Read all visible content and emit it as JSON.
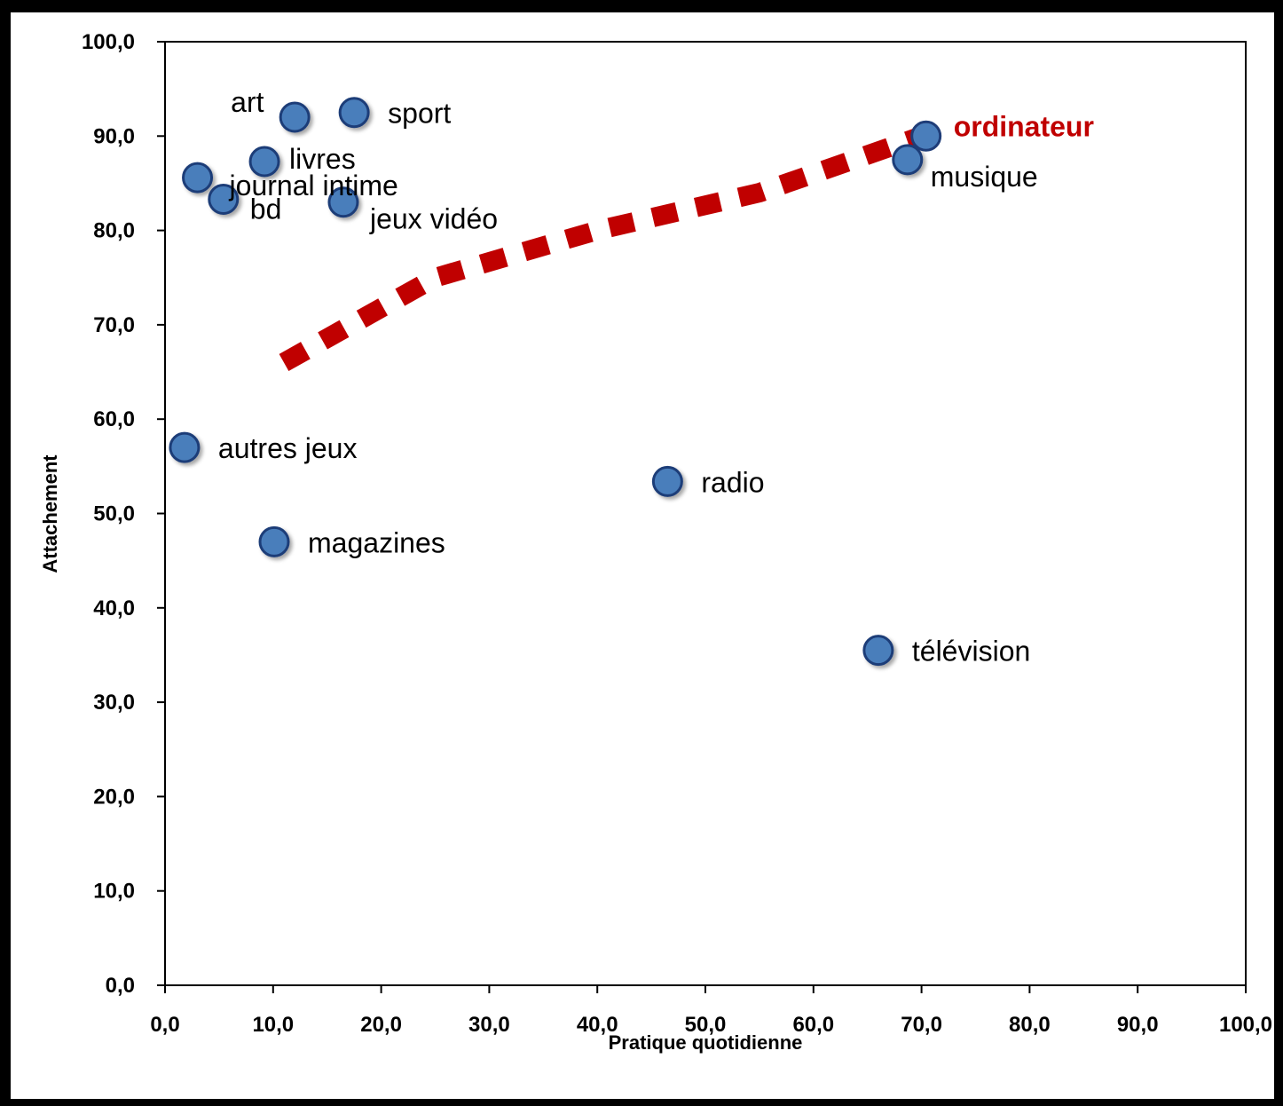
{
  "chart_data": {
    "type": "scatter",
    "xlabel": "Pratique quotidienne",
    "ylabel": "Attachement",
    "xlim": [
      0,
      100
    ],
    "ylim": [
      0,
      100
    ],
    "x_ticks": [
      "0,0",
      "10,0",
      "20,0",
      "30,0",
      "40,0",
      "50,0",
      "60,0",
      "70,0",
      "80,0",
      "90,0",
      "100,0"
    ],
    "y_ticks": [
      "0,0",
      "10,0",
      "20,0",
      "30,0",
      "40,0",
      "50,0",
      "60,0",
      "70,0",
      "80,0",
      "90,0",
      "100,0"
    ],
    "grid": false,
    "points": [
      {
        "label": "art",
        "x": 12.0,
        "y": 92.0
      },
      {
        "label": "sport",
        "x": 17.5,
        "y": 92.5
      },
      {
        "label": "livres",
        "x": 9.2,
        "y": 87.3
      },
      {
        "label": "journal intime",
        "x": 3.0,
        "y": 85.6
      },
      {
        "label": "bd",
        "x": 5.4,
        "y": 83.3
      },
      {
        "label": "jeux vidéo",
        "x": 16.5,
        "y": 83.0
      },
      {
        "label": "autres jeux",
        "x": 1.8,
        "y": 57.0
      },
      {
        "label": "radio",
        "x": 46.5,
        "y": 53.4
      },
      {
        "label": "magazines",
        "x": 10.1,
        "y": 47.0
      },
      {
        "label": "télévision",
        "x": 66.0,
        "y": 35.5
      },
      {
        "label": "musique",
        "x": 68.7,
        "y": 87.5
      },
      {
        "label": "ordinateur",
        "x": 70.5,
        "y": 90.0,
        "highlight": true
      }
    ],
    "trend": {
      "style": "dashed",
      "x": [
        11,
        25,
        40,
        55,
        70
      ],
      "y": [
        66,
        75,
        80,
        84,
        90
      ]
    }
  },
  "colors": {
    "marker": "#4a7ebb",
    "marker_stroke": "#1f3d78",
    "highlight": "#c00000",
    "background": "#000000",
    "panel": "#ffffff"
  }
}
